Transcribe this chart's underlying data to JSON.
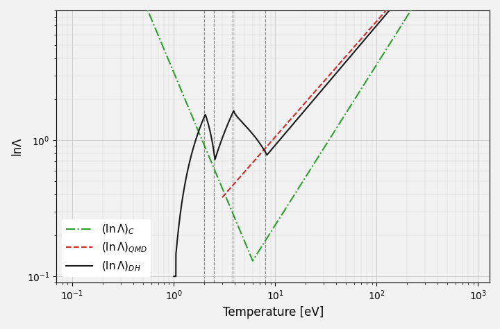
{
  "title": "",
  "xlabel": "Temperature [eV]",
  "ylabel": "lnΛ",
  "xlim": [
    0.07,
    1300
  ],
  "ylim": [
    0.09,
    9
  ],
  "vlines": [
    2.0,
    2.5,
    3.8,
    8.0
  ],
  "colors_C": "#2ca02c",
  "colors_QMD": "#d62728",
  "colors_DH": "#1a1a1a",
  "ls_C": "-.",
  "ls_QMD": "--",
  "ls_DH": "-",
  "lw": 1.5,
  "background_color": "#f2f2f2",
  "grid_color": "#cccccc",
  "vline_color": "#555555"
}
